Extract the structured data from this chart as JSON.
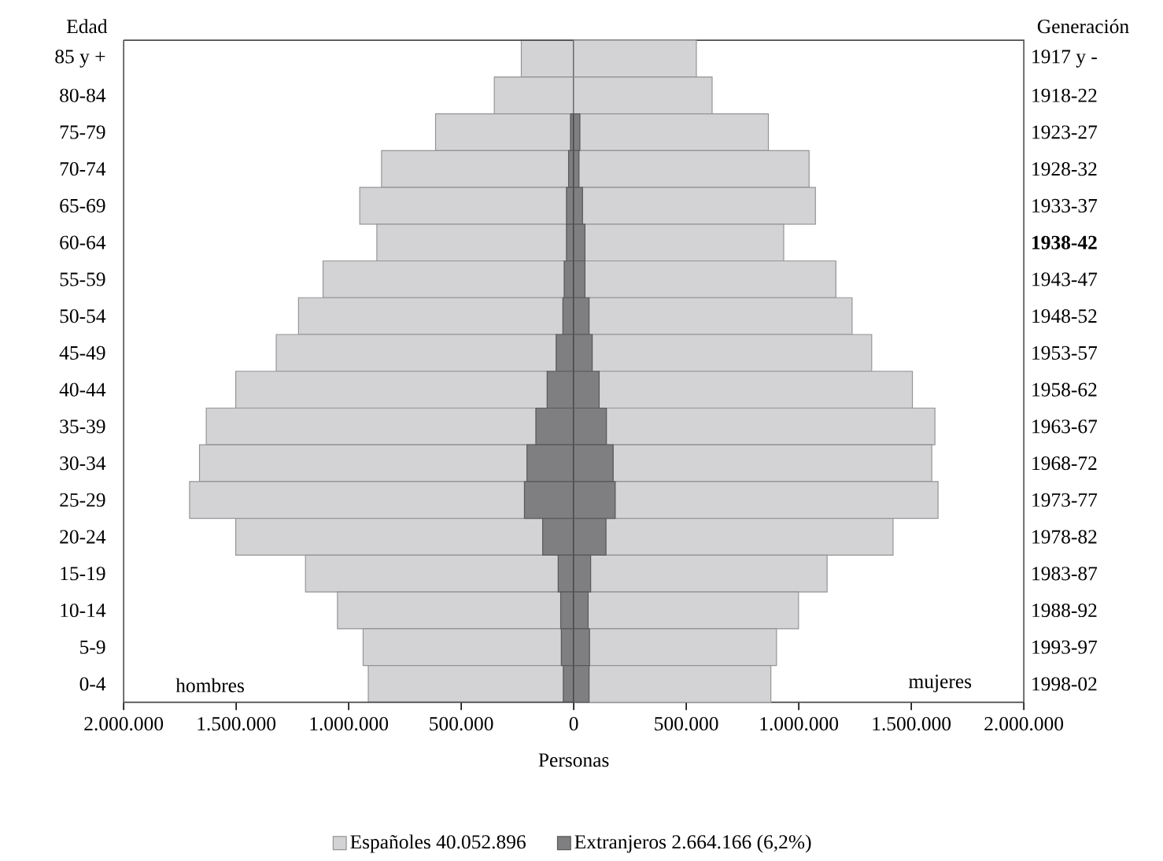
{
  "chart_data": {
    "type": "bar",
    "orientation": "horizontal",
    "stacked": true,
    "ylabel": "Edad",
    "y2label": "Generación",
    "xlabel": "Personas",
    "categories": [
      "85 y +",
      "80-84",
      "75-79",
      "70-74",
      "65-69",
      "60-64",
      "55-59",
      "50-54",
      "45-49",
      "40-44",
      "35-39",
      "30-34",
      "25-29",
      "20-24",
      "15-19",
      "10-14",
      "5-9",
      "0-4"
    ],
    "y2_categories": [
      "1917 y -",
      "1918-22",
      "1923-27",
      "1928-32",
      "1933-37",
      "**1938-42**",
      "1943-47",
      "1948-52",
      "1953-57",
      "1958-62",
      "1963-67",
      "1968-72",
      "1973-77",
      "1978-82",
      "1983-87",
      "1988-92",
      "1993-97",
      "1998-02"
    ],
    "series": [
      {
        "color": "#7f7f81",
        "values": [
          0,
          0,
          -14000,
          -23000,
          -32000,
          -32000,
          -42000,
          -48000,
          -78000,
          -118000,
          -168000,
          -208000,
          -219000,
          -138000,
          -69000,
          -58000,
          -55000,
          -46000
        ]
      },
      {
        "color": "#d3d3d5",
        "values": [
          -233000,
          -353000,
          -600000,
          -831000,
          -919000,
          -843000,
          -1072000,
          -1175000,
          -1244000,
          -1384000,
          -1465000,
          -1455000,
          -1488000,
          -1364000,
          -1123000,
          -992000,
          -881000,
          -867000
        ]
      },
      {
        "name": "Extranjeros 2.664.166 (6,2%)",
        "color": "#7f7f81",
        "values": [
          0,
          0,
          27000,
          23000,
          39000,
          50000,
          50000,
          68000,
          82000,
          113000,
          145000,
          175000,
          184000,
          143000,
          75000,
          64000,
          70000,
          68000
        ]
      },
      {
        "name": "Españoles 40.052.896",
        "color": "#d3d3d5",
        "values": [
          545000,
          615000,
          838000,
          1023000,
          1035000,
          883000,
          1115000,
          1169000,
          1242000,
          1392000,
          1460000,
          1416000,
          1435000,
          1276000,
          1051000,
          935000,
          831000,
          808000
        ]
      }
    ],
    "xlim": [
      -2000000,
      2000000
    ],
    "xticks": [
      {
        "value": -2000000,
        "label": "2.000.000"
      },
      {
        "value": -1500000,
        "label": "1.500.000"
      },
      {
        "value": -1000000,
        "label": "1.000.000"
      },
      {
        "value": -500000,
        "label": "500.000"
      },
      0,
      {
        "value": 500000,
        "label": "500.000"
      },
      {
        "value": 1000000,
        "label": "1.000.000"
      },
      {
        "value": 1500000,
        "label": "1.500.000"
      },
      {
        "value": 2000000,
        "label": "2.000.000"
      }
    ],
    "ref_lines": [
      {
        "axis": "x",
        "value": 0,
        "color": "#333333"
      }
    ],
    "annotations": [
      "hombres",
      "mujeres"
    ],
    "legend": "bottom"
  }
}
